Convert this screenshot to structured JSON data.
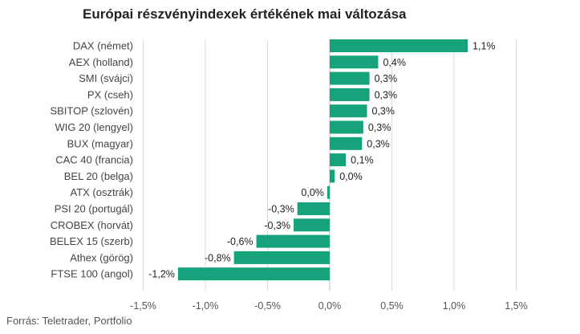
{
  "title": "Európai részvényindexek értékének mai változása",
  "source": "Forrás: Teletrader, Portfolio",
  "colors": {
    "bar": "#16a37b",
    "grid": "#d9d9d9",
    "zero": "#bfbfbf"
  },
  "chart_data": {
    "type": "bar",
    "orientation": "horizontal",
    "title": "Európai részvényindexek értékének mai változása",
    "xlim": [
      -1.5,
      1.5
    ],
    "ticks": [
      -1.5,
      -1.0,
      -0.5,
      0.0,
      0.5,
      1.0,
      1.5
    ],
    "tick_labels": [
      "-1,5%",
      "-1,0%",
      "-0,5%",
      "0,0%",
      "0,5%",
      "1,0%",
      "1,5%"
    ],
    "grid": true,
    "categories": [
      "DAX (német)",
      "AEX (holland)",
      "SMI (svájci)",
      "PX (cseh)",
      "SBITOP (szlovén)",
      "WIG 20 (lengyel)",
      "BUX (magyar)",
      "CAC 40 (francia)",
      "BEL 20 (belga)",
      "ATX (osztrák)",
      "PSI 20 (portugál)",
      "CROBEX (horvát)",
      "BELEX 15 (szerb)",
      "Athex (görög)",
      "FTSE 100 (angol)"
    ],
    "values": [
      1.11,
      0.39,
      0.32,
      0.32,
      0.3,
      0.27,
      0.26,
      0.13,
      0.04,
      -0.02,
      -0.26,
      -0.29,
      -0.59,
      -0.77,
      -1.22
    ],
    "value_labels": [
      "1,1%",
      "0,4%",
      "0,3%",
      "0,3%",
      "0,3%",
      "0,3%",
      "0,3%",
      "0,1%",
      "0,0%",
      "0,0%",
      "-0,3%",
      "-0,3%",
      "-0,6%",
      "-0,8%",
      "-1,2%"
    ]
  }
}
